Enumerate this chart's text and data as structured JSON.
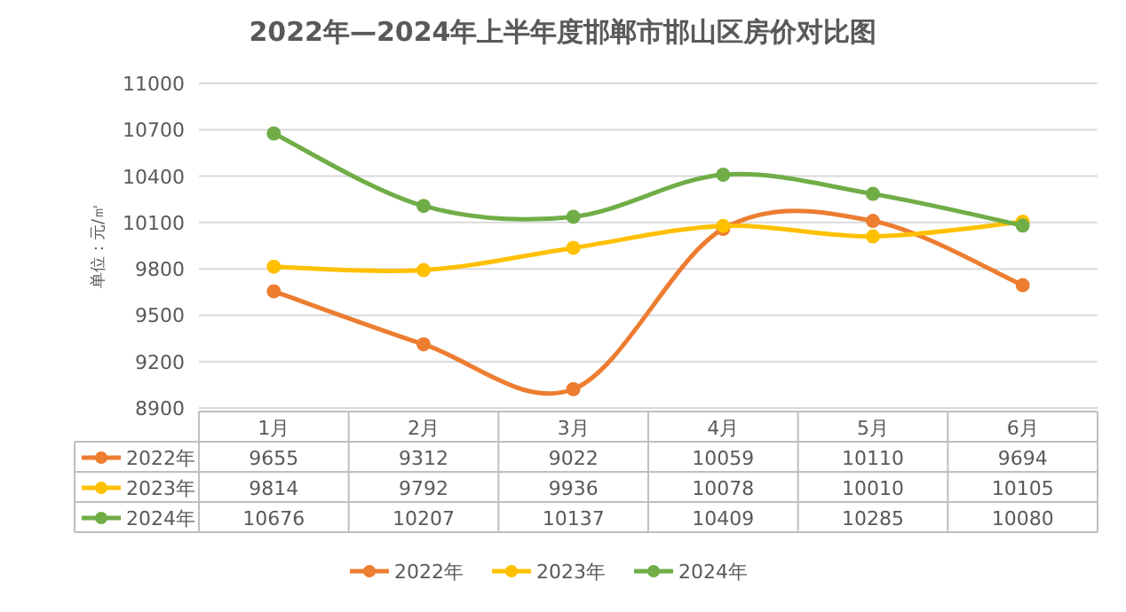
{
  "chart_data": {
    "type": "line",
    "title": "2022年—2024年上半年度邯郸市邯山区房价对比图",
    "ylabel": "单位：元/㎡",
    "categories": [
      "1月",
      "2月",
      "3月",
      "4月",
      "5月",
      "6月"
    ],
    "series": [
      {
        "name": "2022年",
        "color": "#ed7d31",
        "values": [
          9655,
          9312,
          9022,
          10059,
          10110,
          9694
        ]
      },
      {
        "name": "2023年",
        "color": "#ffc000",
        "values": [
          9814,
          9792,
          9936,
          10078,
          10010,
          10105
        ]
      },
      {
        "name": "2024年",
        "color": "#70ad47",
        "values": [
          10676,
          10207,
          10137,
          10409,
          10285,
          10080
        ]
      }
    ],
    "ylim": [
      8900,
      11000
    ],
    "yticks": [
      8900,
      9200,
      9500,
      9800,
      10100,
      10400,
      10700,
      11000
    ],
    "grid": "y",
    "legend": "bottom",
    "marker": "circle",
    "data_labels": true
  }
}
